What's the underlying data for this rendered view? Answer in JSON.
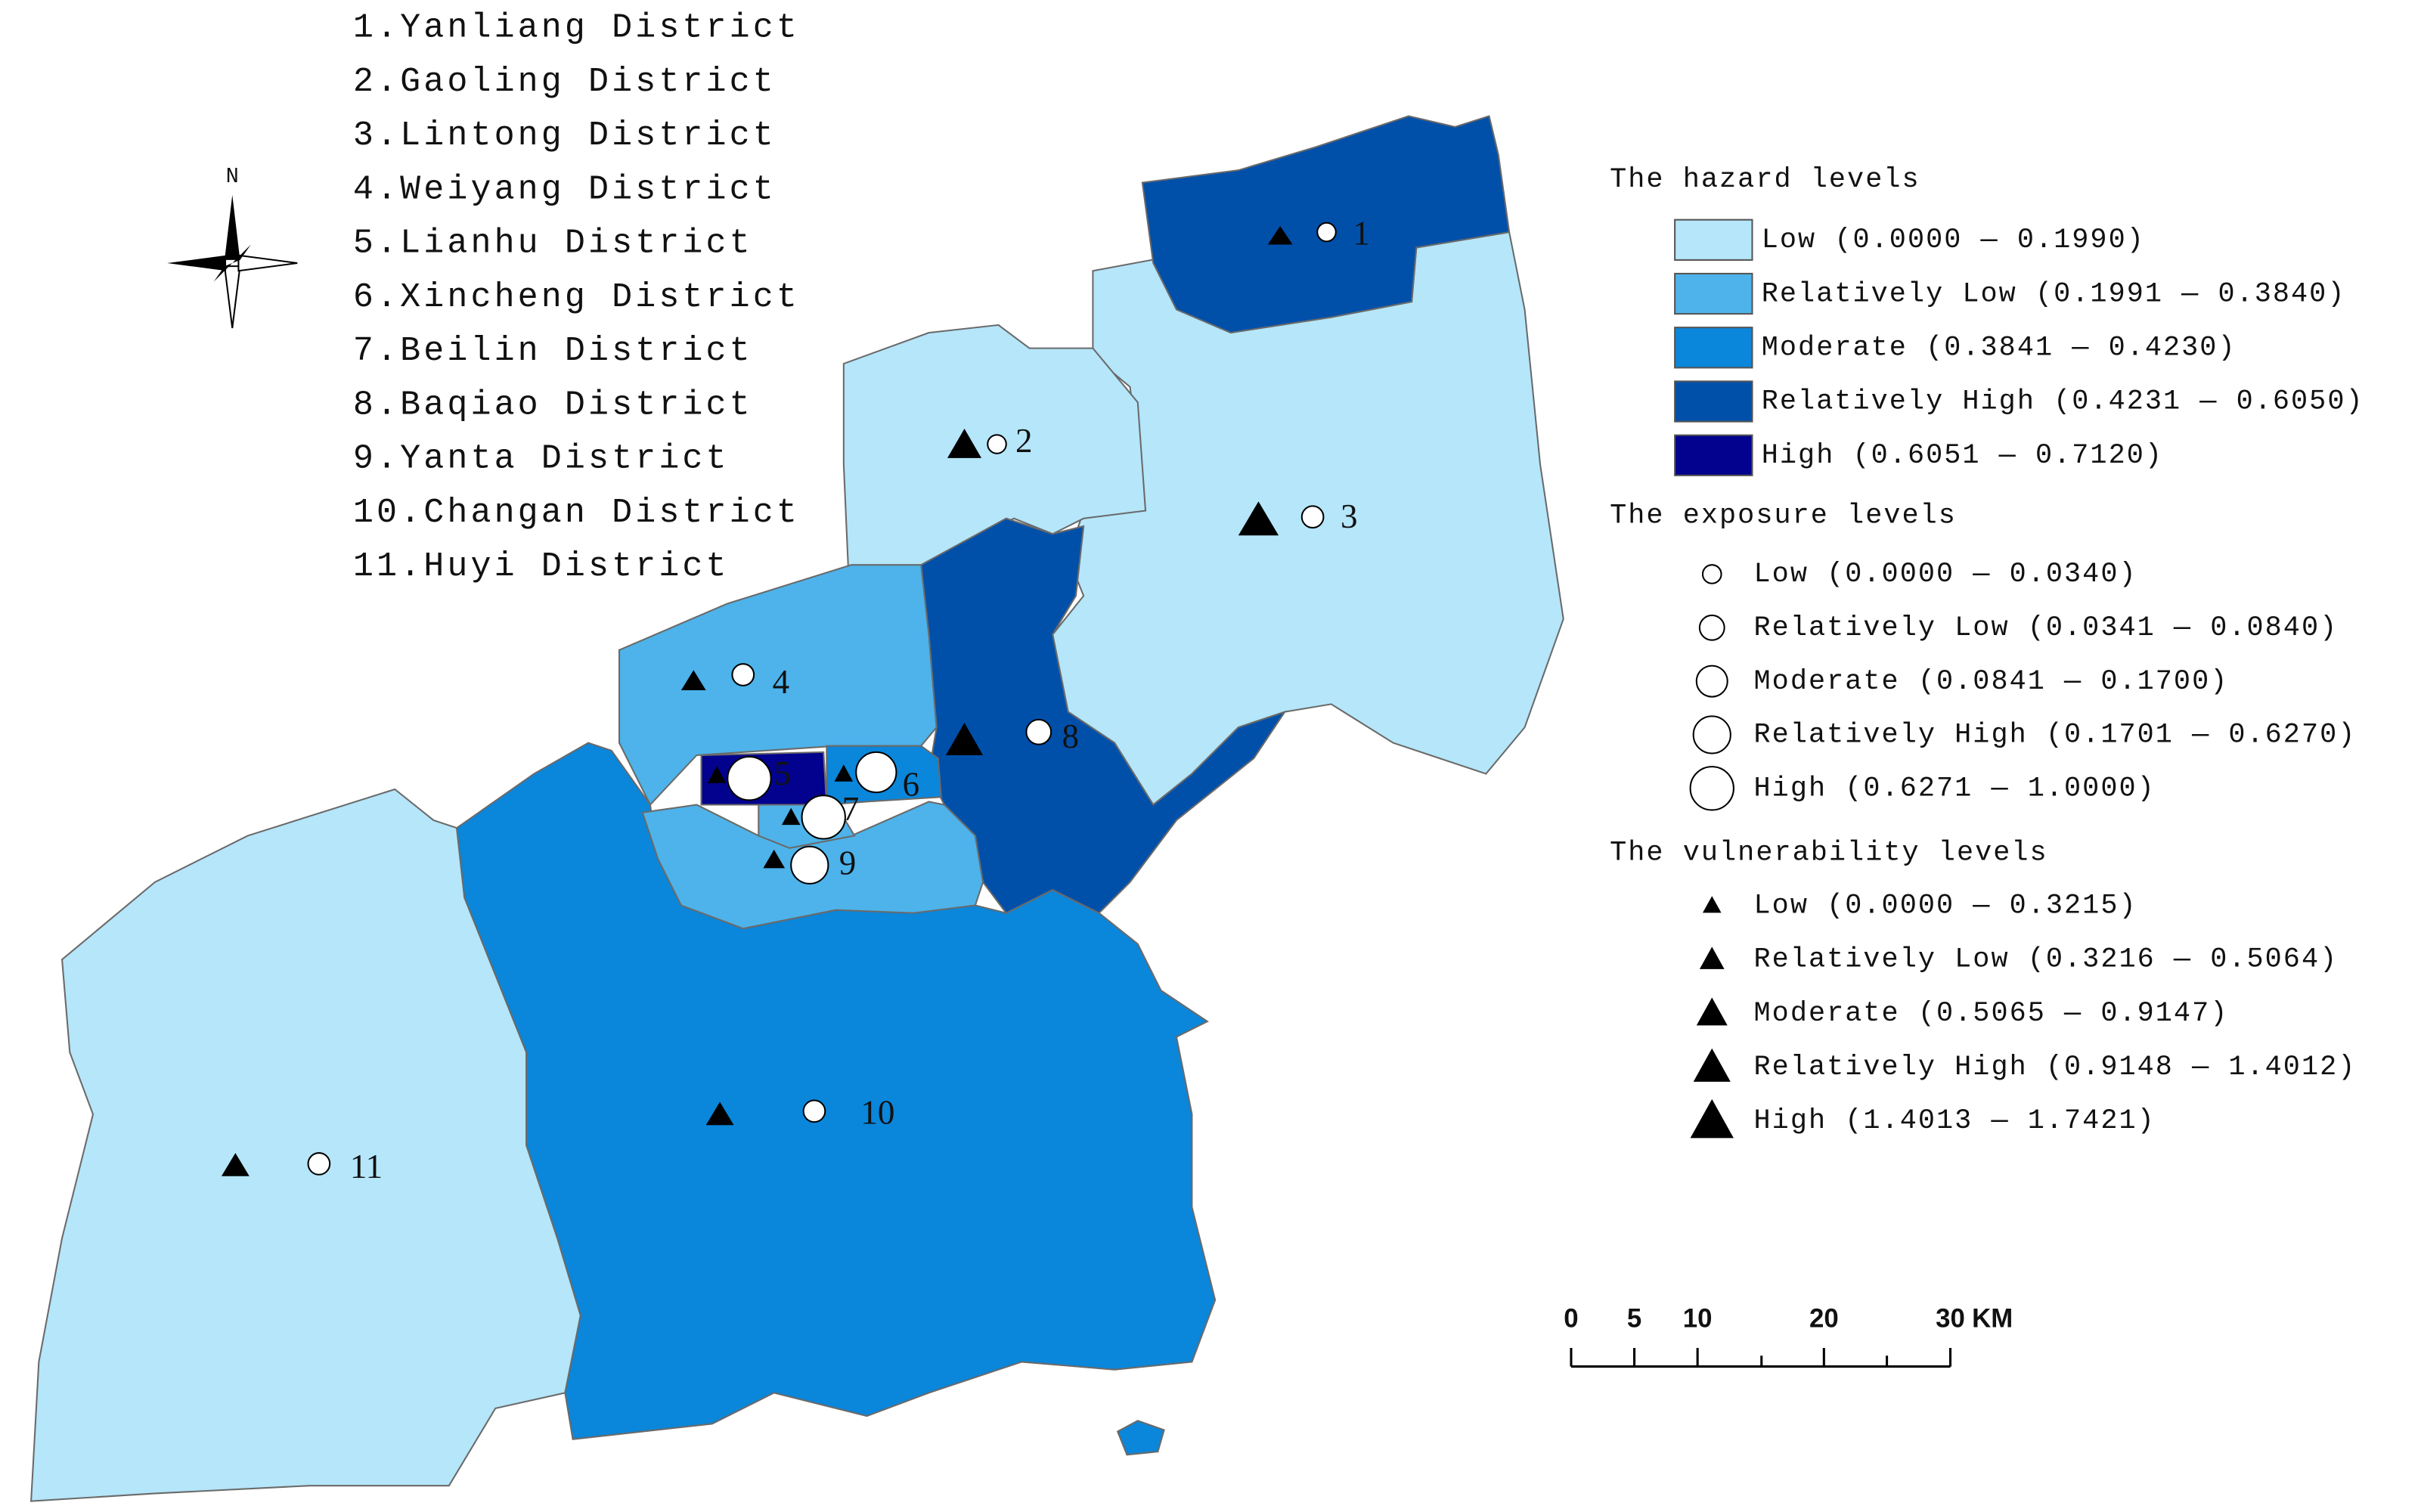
{
  "districts": [
    "1.Yanliang District",
    "2.Gaoling District",
    "3.Lintong District",
    "4.Weiyang District",
    "5.Lianhu District",
    "6.Xincheng District",
    "7.Beilin District",
    "8.Baqiao District",
    "9.Yanta District",
    "10.Changan District",
    "11.Huyi District"
  ],
  "north_label": "N",
  "legend": {
    "hazard": {
      "title": "The hazard levels",
      "items": [
        {
          "label": "Low (0.0000 — 0.1990)",
          "color": "#b5e6fa"
        },
        {
          "label": "Relatively Low (0.1991 — 0.3840)",
          "color": "#4db3ea"
        },
        {
          "label": "Moderate (0.3841 — 0.4230)",
          "color": "#0a86da"
        },
        {
          "label": "Relatively High (0.4231 — 0.6050)",
          "color": "#0050aa"
        },
        {
          "label": "High (0.6051 — 0.7120)",
          "color": "#02028e"
        }
      ]
    },
    "exposure": {
      "title": "The exposure levels",
      "items": [
        "Low (0.0000 — 0.0340)",
        "Relatively Low (0.0341 — 0.0840)",
        "Moderate (0.0841 — 0.1700)",
        "Relatively High (0.1701 — 0.6270)",
        "High (0.6271 — 1.0000)"
      ]
    },
    "vulnerability": {
      "title": "The vulnerability levels",
      "items": [
        "Low (0.0000 — 0.3215)",
        "Relatively Low (0.3216 — 0.5064)",
        "Moderate (0.5065 — 0.9147)",
        "Relatively High (0.9148 — 1.4012)",
        "High (1.4013 — 1.7421)"
      ]
    }
  },
  "map_labels": [
    "1",
    "2",
    "3",
    "4",
    "5",
    "6",
    "7",
    "8",
    "9",
    "10",
    "11"
  ],
  "scale_bar": {
    "ticks": [
      0,
      5,
      10,
      20,
      30
    ],
    "unit": "KM"
  }
}
